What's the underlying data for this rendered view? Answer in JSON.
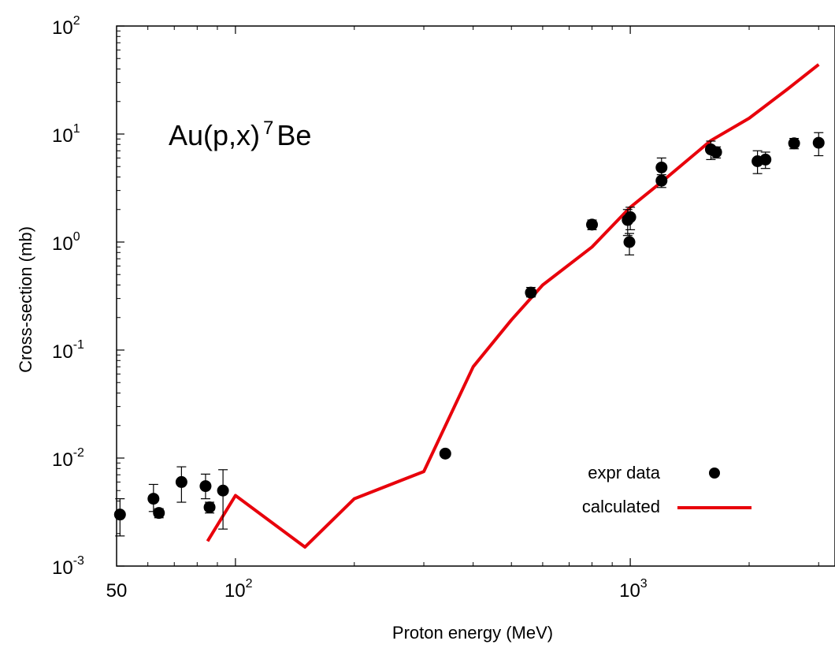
{
  "chart_data": {
    "type": "scatter",
    "annotation": {
      "prefix": "Au(p,x)",
      "sup": "7",
      "suffix": "Be"
    },
    "xlabel": "Proton energy (MeV)",
    "ylabel": "Cross-section (mb)",
    "x_scale": "log",
    "y_scale": "log",
    "xlim": [
      50,
      3300
    ],
    "ylim": [
      0.001,
      100
    ],
    "x_ticks": [
      {
        "value": 50,
        "base": "50",
        "exp": ""
      },
      {
        "value": 100,
        "base": "10",
        "exp": "2"
      },
      {
        "value": 1000,
        "base": "10",
        "exp": "3"
      }
    ],
    "y_ticks": [
      {
        "value": 0.001,
        "base": "10",
        "exp": "-3"
      },
      {
        "value": 0.01,
        "base": "10",
        "exp": "-2"
      },
      {
        "value": 0.1,
        "base": "10",
        "exp": "-1"
      },
      {
        "value": 1,
        "base": "10",
        "exp": "0"
      },
      {
        "value": 10,
        "base": "10",
        "exp": "1"
      },
      {
        "value": 100,
        "base": "10",
        "exp": "2"
      }
    ],
    "grid": false,
    "legend_position": "bottom-right",
    "series": [
      {
        "name": "expr data",
        "type": "scatter",
        "color": "#000000",
        "points": [
          {
            "x": 51,
            "y": 0.003,
            "ylo": 0.0019,
            "yhi": 0.0042
          },
          {
            "x": 62,
            "y": 0.0042,
            "ylo": 0.0032,
            "yhi": 0.0057
          },
          {
            "x": 64,
            "y": 0.0031,
            "ylo": 0.0028,
            "yhi": 0.0034
          },
          {
            "x": 73,
            "y": 0.006,
            "ylo": 0.0039,
            "yhi": 0.0083
          },
          {
            "x": 84,
            "y": 0.0055,
            "ylo": 0.0042,
            "yhi": 0.0071
          },
          {
            "x": 86,
            "y": 0.0035,
            "ylo": 0.0031,
            "yhi": 0.0039
          },
          {
            "x": 93,
            "y": 0.005,
            "ylo": 0.0022,
            "yhi": 0.0078
          },
          {
            "x": 340,
            "y": 0.011,
            "ylo": 0.0104,
            "yhi": 0.0116
          },
          {
            "x": 560,
            "y": 0.34,
            "ylo": 0.31,
            "yhi": 0.38
          },
          {
            "x": 800,
            "y": 1.45,
            "ylo": 1.3,
            "yhi": 1.6
          },
          {
            "x": 985,
            "y": 1.6,
            "ylo": 1.15,
            "yhi": 2.0
          },
          {
            "x": 995,
            "y": 1.0,
            "ylo": 0.76,
            "yhi": 1.2
          },
          {
            "x": 1000,
            "y": 1.7,
            "ylo": 1.3,
            "yhi": 2.1
          },
          {
            "x": 1200,
            "y": 4.9,
            "ylo": 4.0,
            "yhi": 6.0
          },
          {
            "x": 1200,
            "y": 3.7,
            "ylo": 3.2,
            "yhi": 4.2
          },
          {
            "x": 1600,
            "y": 7.2,
            "ylo": 5.8,
            "yhi": 8.6
          },
          {
            "x": 1650,
            "y": 6.8,
            "ylo": 6.0,
            "yhi": 7.6
          },
          {
            "x": 2100,
            "y": 5.6,
            "ylo": 4.3,
            "yhi": 7.0
          },
          {
            "x": 2200,
            "y": 5.8,
            "ylo": 4.8,
            "yhi": 6.8
          },
          {
            "x": 2600,
            "y": 8.2,
            "ylo": 7.3,
            "yhi": 9.1
          },
          {
            "x": 3000,
            "y": 8.3,
            "ylo": 6.3,
            "yhi": 10.3
          }
        ]
      },
      {
        "name": "calculated",
        "type": "line",
        "color": "#e8000b",
        "points": [
          {
            "x": 85,
            "y": 0.0017
          },
          {
            "x": 100,
            "y": 0.0045
          },
          {
            "x": 150,
            "y": 0.0015
          },
          {
            "x": 200,
            "y": 0.0042
          },
          {
            "x": 300,
            "y": 0.0075
          },
          {
            "x": 400,
            "y": 0.07
          },
          {
            "x": 500,
            "y": 0.19
          },
          {
            "x": 600,
            "y": 0.4
          },
          {
            "x": 800,
            "y": 0.9
          },
          {
            "x": 1000,
            "y": 2.1
          },
          {
            "x": 1200,
            "y": 3.6
          },
          {
            "x": 1600,
            "y": 8.7
          },
          {
            "x": 2000,
            "y": 14.0
          },
          {
            "x": 2500,
            "y": 26.0
          },
          {
            "x": 3000,
            "y": 44.0
          }
        ]
      }
    ]
  }
}
